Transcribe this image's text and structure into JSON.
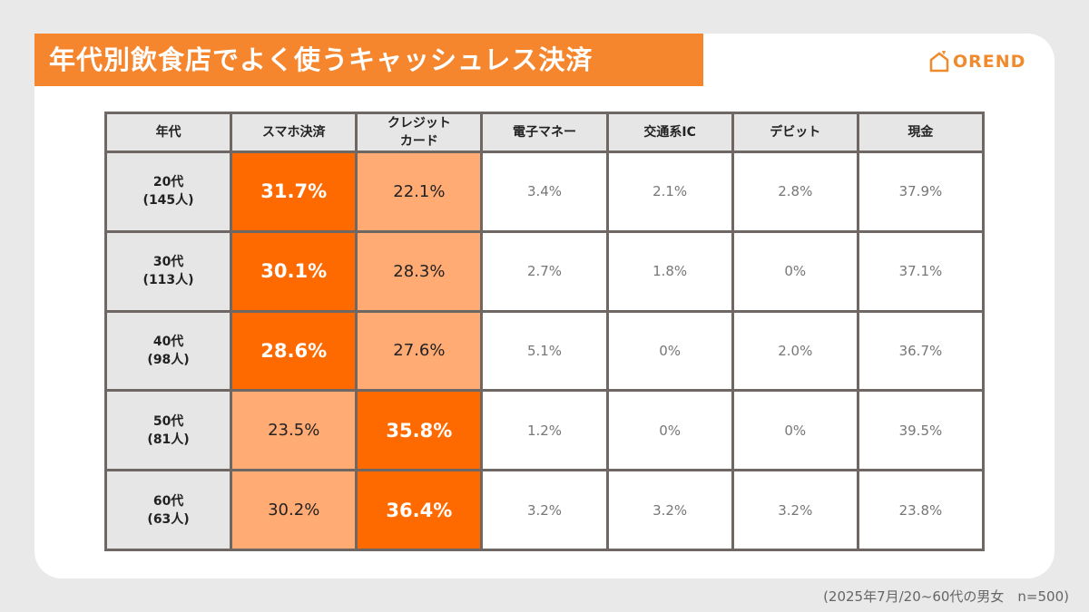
{
  "header": {
    "title": "年代別飲食店でよく使うキャッシュレス決済",
    "logo": "OREND"
  },
  "table": {
    "columns": [
      [
        "年代"
      ],
      [
        "スマホ決済"
      ],
      [
        "クレジット",
        "カード"
      ],
      [
        "電子マネー"
      ],
      [
        "交通系IC"
      ],
      [
        "デビット"
      ],
      [
        "現金"
      ]
    ],
    "rows": [
      {
        "label": [
          "20代",
          "(145人)"
        ],
        "cells": [
          "31.7%",
          "22.1%",
          "3.4%",
          "2.1%",
          "2.8%",
          "37.9%"
        ]
      },
      {
        "label": [
          "30代",
          "(113人)"
        ],
        "cells": [
          "30.1%",
          "28.3%",
          "2.7%",
          "1.8%",
          "0%",
          "37.1%"
        ]
      },
      {
        "label": [
          "40代",
          "(98人)"
        ],
        "cells": [
          "28.6%",
          "27.6%",
          "5.1%",
          "0%",
          "2.0%",
          "36.7%"
        ]
      },
      {
        "label": [
          "50代",
          "(81人)"
        ],
        "cells": [
          "23.5%",
          "35.8%",
          "1.2%",
          "0%",
          "0%",
          "39.5%"
        ]
      },
      {
        "label": [
          "60代",
          "(63人)"
        ],
        "cells": [
          "30.2%",
          "36.4%",
          "3.2%",
          "3.2%",
          "3.2%",
          "23.8%"
        ]
      }
    ]
  },
  "footnote": "(2025年7月/20~60代の男女　n=500)"
}
